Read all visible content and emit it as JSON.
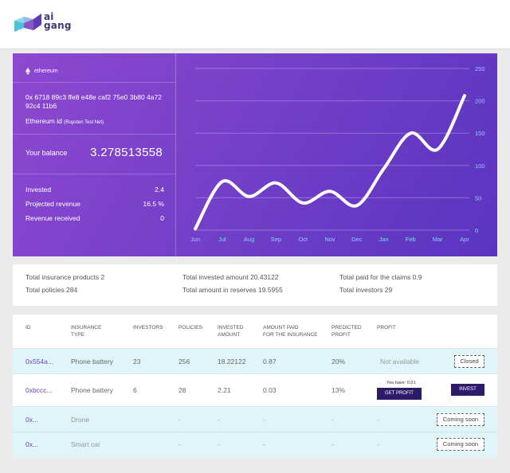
{
  "brand": {
    "line1": "ai",
    "line2": "gang"
  },
  "account": {
    "network": "ethereum",
    "address": "0x 6718 89c3 ffe8 e48e caf2 75e0 3b80 4a72 92c4 11b6",
    "id_label": "Ethereum id",
    "id_note": "(Ropsten Test Net)",
    "balance_label": "Your balance",
    "balance_value": "3.278513558",
    "stats": [
      {
        "label": "Invested",
        "value": "2.4"
      },
      {
        "label": "Projected revenue",
        "value": "16.5 %"
      },
      {
        "label": "Revenue received",
        "value": "0"
      }
    ]
  },
  "chart_data": {
    "type": "line",
    "categories": [
      "Jun",
      "Jul",
      "Aug",
      "Sep",
      "Oct",
      "Nov",
      "Dec",
      "Jan",
      "Feb",
      "Mar",
      "Apr"
    ],
    "values": [
      2,
      75,
      52,
      73,
      42,
      60,
      38,
      95,
      150,
      125,
      208
    ],
    "ylim": [
      0,
      250
    ],
    "yticks": [
      0,
      50,
      100,
      150,
      200,
      250
    ],
    "grid": true,
    "line_color": "#ffffff"
  },
  "summary": [
    {
      "label": "Total insurance products",
      "value": "2"
    },
    {
      "label": "Total invested amount",
      "value": "20.43122"
    },
    {
      "label": "Total paid for the claims",
      "value": "0.9"
    },
    {
      "label": "Total policies",
      "value": "284"
    },
    {
      "label": "Total amount in reserves",
      "value": "19.5955"
    },
    {
      "label": "Total investors",
      "value": "29"
    }
  ],
  "table": {
    "headers": [
      [
        "ID"
      ],
      [
        "Insurance",
        "type"
      ],
      [
        "Investors"
      ],
      [
        "Policies"
      ],
      [
        "Invested",
        "amount"
      ],
      [
        "Amount paid",
        "for the insurance"
      ],
      [
        "Predicted",
        "profit"
      ],
      [
        "Profit"
      ]
    ],
    "rows": [
      {
        "id": "0x554a...",
        "type": "Phone battery",
        "investors": "23",
        "policies": "256",
        "invested": "18.22122",
        "paid": "0.87",
        "predicted": "20%",
        "profit": "Not available",
        "action": "Closed"
      },
      {
        "id": "0xbccc...",
        "type": "Phone battery",
        "investors": "6",
        "policies": "28",
        "invested": "2.21",
        "paid": "0.03",
        "predicted": "13%",
        "you_have": "You have: 0.01",
        "profit_btn": "Get profit",
        "action": "Invest"
      },
      {
        "id": "0x...",
        "type": "Drone",
        "investors": "-",
        "policies": "-",
        "invested": "-",
        "paid": "-",
        "predicted": "-",
        "profit": "-",
        "action": "Coming soon"
      },
      {
        "id": "0x...",
        "type": "Smart car",
        "investors": "-",
        "policies": "-",
        "invested": "-",
        "paid": "-",
        "predicted": "-",
        "profit": "-",
        "action": "Coming soon"
      }
    ]
  }
}
